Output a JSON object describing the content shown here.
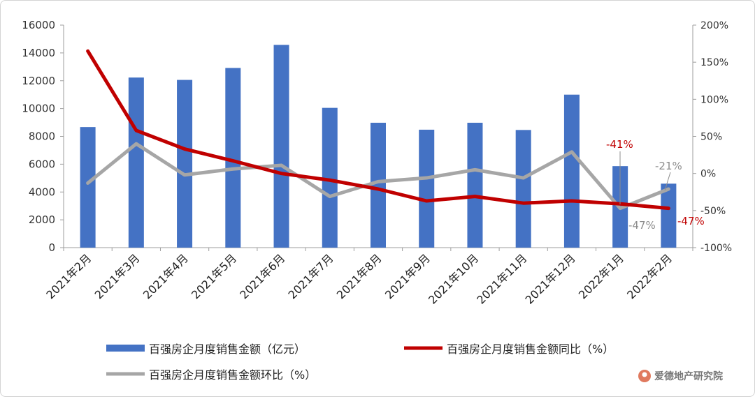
{
  "chart_data": {
    "type": "bar+line",
    "categories": [
      "2021年2月",
      "2021年3月",
      "2021年4月",
      "2021年5月",
      "2021年6月",
      "2021年7月",
      "2021年8月",
      "2021年9月",
      "2021年10月",
      "2021年11月",
      "2021年12月",
      "2022年1月",
      "2022年2月"
    ],
    "left_axis": {
      "min": 0,
      "max": 16000,
      "ticks": [
        "0",
        "2000",
        "4000",
        "6000",
        "8000",
        "10000",
        "12000",
        "14000",
        "16000"
      ]
    },
    "right_axis": {
      "min": -100,
      "max": 200,
      "ticks": [
        "-100%",
        "-50%",
        "0%",
        "50%",
        "100%",
        "150%",
        "200%"
      ]
    },
    "series": [
      {
        "name": "百强房企月度销售金额（亿元）",
        "type": "bar",
        "axis": "left",
        "color": "#4472C4",
        "values": [
          8670,
          12230,
          12060,
          12920,
          14580,
          10050,
          8980,
          8480,
          8980,
          8460,
          11000,
          5860,
          4600
        ]
      },
      {
        "name": "百强房企月度销售金额同比（%）",
        "type": "line",
        "axis": "right",
        "color": "#C00000",
        "values": [
          165,
          58,
          33,
          17,
          0,
          -9,
          -21,
          -37,
          -31,
          -40,
          -37,
          -41,
          -47
        ]
      },
      {
        "name": "百强房企月度销售金额环比（%）",
        "type": "line",
        "axis": "right",
        "color": "#A6A6A6",
        "values": [
          -13,
          40,
          -2,
          6,
          11,
          -31,
          -11,
          -6,
          5,
          -6,
          29,
          -47,
          -21
        ]
      }
    ],
    "annotations": {
      "yoy_jan": "-41%",
      "mom_jan": "-47%",
      "mom_feb": "-21%",
      "yoy_feb": "-47%"
    },
    "legend_position": "bottom",
    "grid": false
  },
  "watermark": {
    "text": "爱德地产研究院"
  },
  "colors": {
    "bar": "#4472C4",
    "yoy": "#C00000",
    "mom": "#A6A6A6",
    "annotation_gray": "#8c8c8c"
  }
}
